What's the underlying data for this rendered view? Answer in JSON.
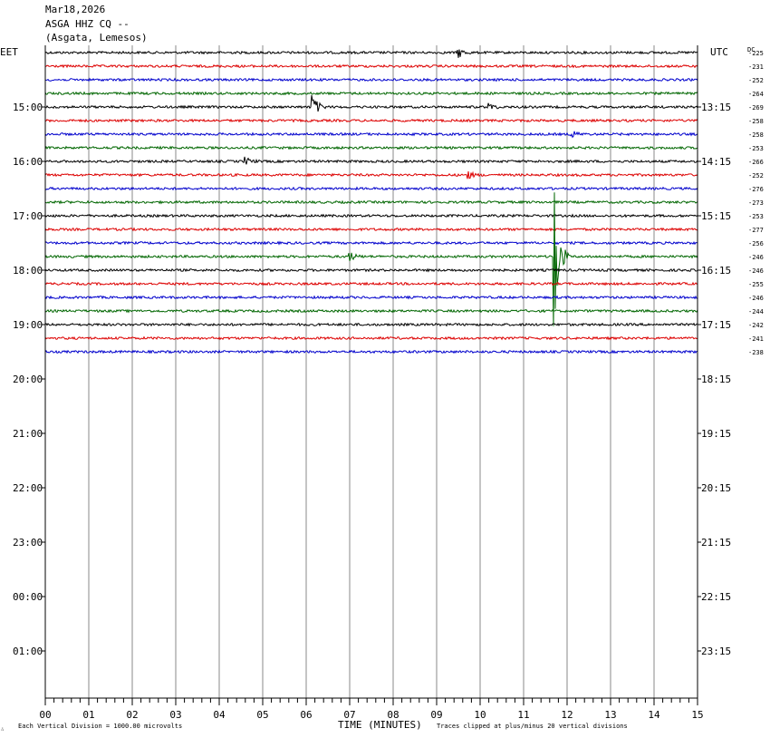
{
  "header": {
    "date": "Mar18,2026",
    "station": "ASGA HHZ CQ --",
    "location": "(Asgata, Lemesos)"
  },
  "left_label": "EET",
  "right_label": "UTC",
  "dc_label": "DC",
  "xlabel": "TIME (MINUTES)",
  "footnote_left": "Each Vertical Division = 1000.00 microvolts",
  "footnote_right": "Traces clipped at plus/minus 20 vertical divisions",
  "corner_mark": "∴",
  "colors": {
    "trace_cycle": [
      "#000000",
      "#dd0000",
      "#0000cc",
      "#006600"
    ],
    "grid": "#888888"
  },
  "chart_data": {
    "type": "line",
    "title": "ASGA HHZ CQ --",
    "xlabel": "TIME (MINUTES)",
    "xlim": [
      0,
      15
    ],
    "x_ticks": [
      "00",
      "01",
      "02",
      "03",
      "04",
      "05",
      "06",
      "07",
      "08",
      "09",
      "10",
      "11",
      "12",
      "13",
      "14",
      "15"
    ],
    "eet_hour_labels": [
      "15:00",
      "16:00",
      "17:00",
      "18:00",
      "19:00",
      "20:00",
      "21:00",
      "22:00",
      "23:00",
      "00:00",
      "01:00"
    ],
    "utc_hour_labels": [
      "13:15",
      "14:15",
      "15:15",
      "16:15",
      "17:15",
      "18:15",
      "19:15",
      "20:15",
      "21:15",
      "22:15",
      "23:15"
    ],
    "trace_rows_per_hour": 4,
    "dc_offsets": [
      "-225",
      "-231",
      "-252",
      "-264",
      "-269",
      "-258",
      "-258",
      "-253",
      "-266",
      "-252",
      "-276",
      "-273",
      "-253",
      "-277",
      "-256",
      "-246",
      "-246",
      "-255",
      "-246",
      "-244",
      "-242",
      "-241",
      "-238"
    ],
    "events": [
      {
        "trace": 0,
        "minute": 9.5,
        "amplitude_divisions": 0.4
      },
      {
        "trace": 4,
        "minute": 6.15,
        "amplitude_divisions": 1.0
      },
      {
        "trace": 4,
        "minute": 10.2,
        "amplitude_divisions": 0.3
      },
      {
        "trace": 6,
        "minute": 12.1,
        "amplitude_divisions": 0.3
      },
      {
        "trace": 8,
        "minute": 4.6,
        "amplitude_divisions": 0.3
      },
      {
        "trace": 9,
        "minute": 9.7,
        "amplitude_divisions": 0.35
      },
      {
        "trace": 15,
        "minute": 7.0,
        "amplitude_divisions": 0.35
      },
      {
        "trace": 15,
        "minute": 11.7,
        "amplitude_divisions": 5.6
      }
    ]
  }
}
